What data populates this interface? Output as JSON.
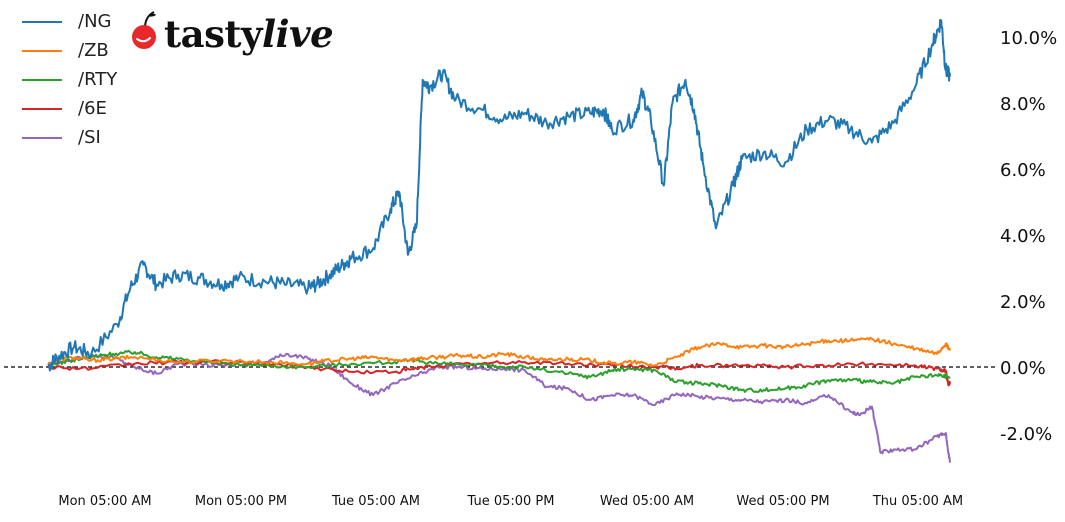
{
  "brand": {
    "name_part1": "tasty",
    "name_part2": "live",
    "logo_icon": "cherry-icon",
    "logo_color": "#e8282b"
  },
  "chart_data": {
    "type": "line",
    "title": "",
    "xlabel": "",
    "ylabel": "",
    "x_tick_labels": [
      "Mon 05:00 AM",
      "Mon 05:00 PM",
      "Tue 05:00 AM",
      "Tue 05:00 PM",
      "Wed 05:00 AM",
      "Wed 05:00 PM",
      "Thu 05:00 AM"
    ],
    "y_tick_labels": [
      "-2.0%",
      "0.0%",
      "2.0%",
      "4.0%",
      "6.0%",
      "8.0%",
      "10.0%"
    ],
    "ylim": [
      -3.2,
      10.6
    ],
    "y_axis_side": "right",
    "zero_line": "dashed",
    "grid": false,
    "legend_position": "top-left",
    "series": [
      {
        "name": "/NG",
        "color": "#1f77b4",
        "points": [
          [
            0,
            0
          ],
          [
            0.1,
            0.3
          ],
          [
            0.3,
            0.6
          ],
          [
            0.5,
            0.4
          ],
          [
            0.8,
            1.3
          ],
          [
            0.95,
            2.4
          ],
          [
            1.1,
            3.1
          ],
          [
            1.25,
            2.5
          ],
          [
            1.5,
            2.8
          ],
          [
            1.75,
            2.7
          ],
          [
            2.0,
            2.5
          ],
          [
            2.2,
            2.7
          ],
          [
            2.5,
            2.6
          ],
          [
            2.75,
            2.5
          ],
          [
            3.0,
            2.4
          ],
          [
            3.1,
            2.5
          ],
          [
            3.25,
            2.8
          ],
          [
            3.4,
            3.1
          ],
          [
            3.5,
            3.3
          ],
          [
            3.75,
            3.6
          ],
          [
            3.95,
            4.8
          ],
          [
            4.05,
            5.3
          ],
          [
            4.15,
            3.4
          ],
          [
            4.25,
            4.3
          ],
          [
            4.32,
            8.7
          ],
          [
            4.4,
            8.5
          ],
          [
            4.55,
            8.9
          ],
          [
            4.7,
            8.1
          ],
          [
            5.0,
            7.8
          ],
          [
            5.25,
            7.5
          ],
          [
            5.5,
            7.7
          ],
          [
            5.75,
            7.4
          ],
          [
            6.0,
            7.6
          ],
          [
            6.25,
            7.7
          ],
          [
            6.4,
            7.8
          ],
          [
            6.5,
            7.2
          ],
          [
            6.75,
            7.5
          ],
          [
            6.85,
            8.3
          ],
          [
            6.95,
            7.5
          ],
          [
            7.1,
            5.5
          ],
          [
            7.2,
            8.0
          ],
          [
            7.35,
            8.7
          ],
          [
            7.45,
            7.8
          ],
          [
            7.55,
            6.2
          ],
          [
            7.7,
            4.2
          ],
          [
            7.9,
            5.5
          ],
          [
            8.0,
            6.3
          ],
          [
            8.25,
            6.5
          ],
          [
            8.5,
            6.2
          ],
          [
            8.75,
            7.2
          ],
          [
            9.0,
            7.5
          ],
          [
            9.25,
            7.2
          ],
          [
            9.5,
            6.8
          ],
          [
            9.75,
            7.4
          ],
          [
            10.0,
            8.5
          ],
          [
            10.2,
            9.8
          ],
          [
            10.3,
            10.5
          ],
          [
            10.35,
            9.0
          ],
          [
            10.4,
            8.8
          ]
        ]
      },
      {
        "name": "/ZB",
        "color": "#ff7f0e",
        "points": [
          [
            0,
            0.1
          ],
          [
            0.25,
            0.3
          ],
          [
            0.5,
            0.2
          ],
          [
            0.75,
            0.25
          ],
          [
            1.0,
            0.3
          ],
          [
            1.5,
            0.15
          ],
          [
            2.0,
            0.2
          ],
          [
            2.5,
            0.15
          ],
          [
            3.0,
            0.1
          ],
          [
            3.25,
            0.2
          ],
          [
            3.5,
            0.25
          ],
          [
            3.75,
            0.3
          ],
          [
            4.0,
            0.2
          ],
          [
            4.25,
            0.25
          ],
          [
            4.5,
            0.3
          ],
          [
            4.75,
            0.35
          ],
          [
            5.0,
            0.3
          ],
          [
            5.25,
            0.4
          ],
          [
            5.5,
            0.3
          ],
          [
            5.75,
            0.2
          ],
          [
            6.0,
            0.25
          ],
          [
            6.25,
            0.2
          ],
          [
            6.5,
            0.1
          ],
          [
            6.75,
            0.15
          ],
          [
            7.0,
            0.05
          ],
          [
            7.25,
            0.3
          ],
          [
            7.5,
            0.6
          ],
          [
            7.75,
            0.7
          ],
          [
            8.0,
            0.6
          ],
          [
            8.25,
            0.65
          ],
          [
            8.5,
            0.6
          ],
          [
            8.75,
            0.7
          ],
          [
            9.0,
            0.8
          ],
          [
            9.25,
            0.8
          ],
          [
            9.5,
            0.85
          ],
          [
            9.75,
            0.7
          ],
          [
            10.0,
            0.55
          ],
          [
            10.25,
            0.4
          ],
          [
            10.35,
            0.7
          ],
          [
            10.4,
            0.5
          ]
        ]
      },
      {
        "name": "/RTY",
        "color": "#2ca02c",
        "points": [
          [
            0,
            0.05
          ],
          [
            0.25,
            0.2
          ],
          [
            0.5,
            0.3
          ],
          [
            0.75,
            0.4
          ],
          [
            1.0,
            0.45
          ],
          [
            1.25,
            0.3
          ],
          [
            1.5,
            0.25
          ],
          [
            2.0,
            0.1
          ],
          [
            2.5,
            0.05
          ],
          [
            3.0,
            0.0
          ],
          [
            3.5,
            0.1
          ],
          [
            4.0,
            0.15
          ],
          [
            4.25,
            0.2
          ],
          [
            4.5,
            0.1
          ],
          [
            5.0,
            0.05
          ],
          [
            5.25,
            0.0
          ],
          [
            5.5,
            0.0
          ],
          [
            6.0,
            -0.2
          ],
          [
            6.25,
            -0.3
          ],
          [
            6.5,
            -0.1
          ],
          [
            6.75,
            -0.05
          ],
          [
            7.0,
            -0.1
          ],
          [
            7.25,
            -0.45
          ],
          [
            7.5,
            -0.5
          ],
          [
            7.75,
            -0.55
          ],
          [
            8.0,
            -0.7
          ],
          [
            8.25,
            -0.7
          ],
          [
            8.5,
            -0.65
          ],
          [
            8.75,
            -0.55
          ],
          [
            9.0,
            -0.4
          ],
          [
            9.25,
            -0.4
          ],
          [
            9.5,
            -0.45
          ],
          [
            9.75,
            -0.5
          ],
          [
            10.0,
            -0.3
          ],
          [
            10.25,
            -0.25
          ],
          [
            10.4,
            -0.3
          ]
        ]
      },
      {
        "name": "/6E",
        "color": "#d62728",
        "points": [
          [
            0,
            0.0
          ],
          [
            0.5,
            -0.05
          ],
          [
            1.0,
            0.1
          ],
          [
            1.5,
            0.15
          ],
          [
            2.0,
            0.15
          ],
          [
            2.5,
            0.1
          ],
          [
            3.0,
            0.0
          ],
          [
            3.5,
            -0.15
          ],
          [
            4.0,
            -0.15
          ],
          [
            4.25,
            -0.05
          ],
          [
            4.5,
            0.05
          ],
          [
            5.0,
            0.1
          ],
          [
            5.5,
            0.15
          ],
          [
            6.0,
            0.1
          ],
          [
            6.5,
            0.05
          ],
          [
            7.0,
            0.0
          ],
          [
            7.25,
            -0.05
          ],
          [
            7.5,
            0.05
          ],
          [
            8.0,
            0.05
          ],
          [
            8.5,
            0.0
          ],
          [
            9.0,
            0.05
          ],
          [
            9.5,
            0.1
          ],
          [
            10.0,
            0.05
          ],
          [
            10.25,
            -0.05
          ],
          [
            10.35,
            -0.1
          ],
          [
            10.38,
            -0.55
          ],
          [
            10.4,
            -0.45
          ]
        ]
      },
      {
        "name": "/SI",
        "color": "#9467bd",
        "points": [
          [
            0,
            0.05
          ],
          [
            0.25,
            0.2
          ],
          [
            0.5,
            0.35
          ],
          [
            0.75,
            0.3
          ],
          [
            1.0,
            0.0
          ],
          [
            1.25,
            -0.2
          ],
          [
            1.5,
            0.1
          ],
          [
            2.0,
            0.05
          ],
          [
            2.5,
            0.15
          ],
          [
            2.75,
            0.4
          ],
          [
            3.0,
            0.25
          ],
          [
            3.25,
            0.05
          ],
          [
            3.5,
            -0.5
          ],
          [
            3.75,
            -0.85
          ],
          [
            4.0,
            -0.5
          ],
          [
            4.25,
            -0.25
          ],
          [
            4.5,
            0.0
          ],
          [
            4.75,
            0.0
          ],
          [
            5.0,
            -0.05
          ],
          [
            5.25,
            -0.05
          ],
          [
            5.5,
            -0.1
          ],
          [
            5.75,
            -0.6
          ],
          [
            6.0,
            -0.65
          ],
          [
            6.25,
            -1.0
          ],
          [
            6.5,
            -0.85
          ],
          [
            6.75,
            -0.85
          ],
          [
            7.0,
            -1.15
          ],
          [
            7.25,
            -0.8
          ],
          [
            7.5,
            -0.9
          ],
          [
            7.75,
            -0.95
          ],
          [
            8.0,
            -1.0
          ],
          [
            8.25,
            -1.05
          ],
          [
            8.5,
            -1.0
          ],
          [
            8.75,
            -1.1
          ],
          [
            9.0,
            -0.85
          ],
          [
            9.25,
            -1.35
          ],
          [
            9.35,
            -1.45
          ],
          [
            9.5,
            -1.2
          ],
          [
            9.6,
            -2.6
          ],
          [
            9.75,
            -2.5
          ],
          [
            10.0,
            -2.5
          ],
          [
            10.25,
            -2.1
          ],
          [
            10.35,
            -2.0
          ],
          [
            10.4,
            -2.9
          ]
        ]
      }
    ]
  }
}
